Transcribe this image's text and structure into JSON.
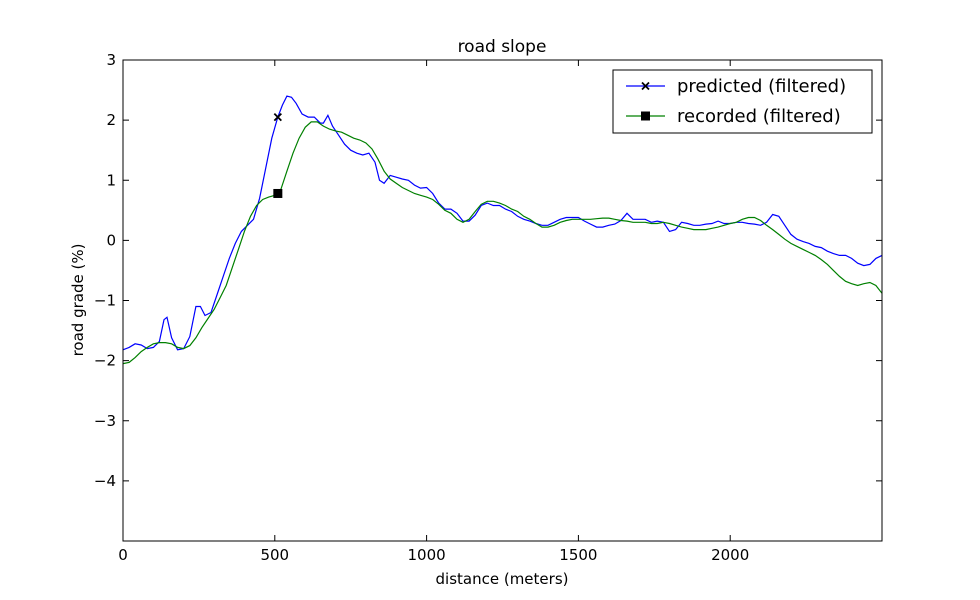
{
  "chart_data": {
    "type": "line",
    "title": "road slope",
    "xlabel": "distance (meters)",
    "ylabel": "road grade (%)",
    "xlim": [
      0,
      2500
    ],
    "ylim": [
      -5,
      3
    ],
    "xticks": [
      0,
      500,
      1000,
      1500,
      2000
    ],
    "yticks": [
      3,
      2,
      1,
      0,
      -1,
      -2,
      -3,
      -4
    ],
    "xtick_labels": [
      "0",
      "500",
      "1000",
      "1500",
      "2000"
    ],
    "ytick_labels": [
      "3",
      "2",
      "1",
      "0",
      "−1",
      "−2",
      "−3",
      "−4"
    ],
    "legend_position": "top-right",
    "grid": false,
    "series": [
      {
        "name": "predicted (filtered)",
        "color": "#0000ff",
        "marker": "x",
        "marker_point": [
          510,
          2.05
        ],
        "points": [
          [
            0,
            -1.82
          ],
          [
            20,
            -1.78
          ],
          [
            40,
            -1.72
          ],
          [
            60,
            -1.74
          ],
          [
            80,
            -1.8
          ],
          [
            100,
            -1.78
          ],
          [
            120,
            -1.68
          ],
          [
            135,
            -1.32
          ],
          [
            145,
            -1.28
          ],
          [
            160,
            -1.62
          ],
          [
            180,
            -1.82
          ],
          [
            200,
            -1.8
          ],
          [
            220,
            -1.6
          ],
          [
            240,
            -1.1
          ],
          [
            255,
            -1.1
          ],
          [
            270,
            -1.25
          ],
          [
            290,
            -1.2
          ],
          [
            310,
            -0.9
          ],
          [
            330,
            -0.6
          ],
          [
            350,
            -0.3
          ],
          [
            370,
            -0.05
          ],
          [
            390,
            0.15
          ],
          [
            410,
            0.25
          ],
          [
            430,
            0.35
          ],
          [
            450,
            0.7
          ],
          [
            470,
            1.2
          ],
          [
            490,
            1.7
          ],
          [
            510,
            2.05
          ],
          [
            525,
            2.25
          ],
          [
            540,
            2.4
          ],
          [
            555,
            2.38
          ],
          [
            570,
            2.28
          ],
          [
            590,
            2.1
          ],
          [
            610,
            2.05
          ],
          [
            630,
            2.05
          ],
          [
            650,
            1.95
          ],
          [
            660,
            1.95
          ],
          [
            675,
            2.08
          ],
          [
            690,
            1.9
          ],
          [
            710,
            1.75
          ],
          [
            730,
            1.6
          ],
          [
            750,
            1.5
          ],
          [
            770,
            1.45
          ],
          [
            790,
            1.42
          ],
          [
            810,
            1.45
          ],
          [
            830,
            1.3
          ],
          [
            845,
            1.0
          ],
          [
            860,
            0.95
          ],
          [
            880,
            1.08
          ],
          [
            900,
            1.05
          ],
          [
            920,
            1.02
          ],
          [
            940,
            1.0
          ],
          [
            960,
            0.92
          ],
          [
            980,
            0.87
          ],
          [
            1000,
            0.88
          ],
          [
            1020,
            0.78
          ],
          [
            1040,
            0.62
          ],
          [
            1060,
            0.52
          ],
          [
            1080,
            0.52
          ],
          [
            1100,
            0.45
          ],
          [
            1120,
            0.32
          ],
          [
            1140,
            0.32
          ],
          [
            1160,
            0.42
          ],
          [
            1180,
            0.58
          ],
          [
            1200,
            0.62
          ],
          [
            1220,
            0.58
          ],
          [
            1240,
            0.58
          ],
          [
            1260,
            0.52
          ],
          [
            1280,
            0.48
          ],
          [
            1300,
            0.4
          ],
          [
            1320,
            0.35
          ],
          [
            1340,
            0.32
          ],
          [
            1360,
            0.28
          ],
          [
            1380,
            0.25
          ],
          [
            1400,
            0.25
          ],
          [
            1420,
            0.3
          ],
          [
            1440,
            0.35
          ],
          [
            1460,
            0.38
          ],
          [
            1480,
            0.38
          ],
          [
            1500,
            0.38
          ],
          [
            1520,
            0.32
          ],
          [
            1540,
            0.27
          ],
          [
            1560,
            0.22
          ],
          [
            1580,
            0.22
          ],
          [
            1600,
            0.25
          ],
          [
            1620,
            0.27
          ],
          [
            1640,
            0.33
          ],
          [
            1660,
            0.45
          ],
          [
            1680,
            0.35
          ],
          [
            1700,
            0.35
          ],
          [
            1720,
            0.35
          ],
          [
            1740,
            0.3
          ],
          [
            1760,
            0.32
          ],
          [
            1780,
            0.3
          ],
          [
            1800,
            0.15
          ],
          [
            1820,
            0.18
          ],
          [
            1840,
            0.3
          ],
          [
            1860,
            0.28
          ],
          [
            1880,
            0.25
          ],
          [
            1900,
            0.25
          ],
          [
            1920,
            0.27
          ],
          [
            1940,
            0.28
          ],
          [
            1960,
            0.32
          ],
          [
            1980,
            0.28
          ],
          [
            2000,
            0.28
          ],
          [
            2020,
            0.3
          ],
          [
            2040,
            0.3
          ],
          [
            2060,
            0.28
          ],
          [
            2080,
            0.27
          ],
          [
            2100,
            0.25
          ],
          [
            2120,
            0.3
          ],
          [
            2140,
            0.43
          ],
          [
            2160,
            0.4
          ],
          [
            2180,
            0.25
          ],
          [
            2200,
            0.1
          ],
          [
            2220,
            0.02
          ],
          [
            2240,
            -0.02
          ],
          [
            2260,
            -0.05
          ],
          [
            2280,
            -0.1
          ],
          [
            2300,
            -0.12
          ],
          [
            2320,
            -0.18
          ],
          [
            2340,
            -0.22
          ],
          [
            2360,
            -0.25
          ],
          [
            2380,
            -0.25
          ],
          [
            2400,
            -0.3
          ],
          [
            2420,
            -0.38
          ],
          [
            2440,
            -0.42
          ],
          [
            2460,
            -0.4
          ],
          [
            2480,
            -0.3
          ],
          [
            2500,
            -0.25
          ]
        ]
      },
      {
        "name": "recorded (filtered)",
        "color": "#008000",
        "marker": "s",
        "marker_point": [
          510,
          0.78
        ],
        "points": [
          [
            0,
            -2.05
          ],
          [
            20,
            -2.03
          ],
          [
            40,
            -1.95
          ],
          [
            60,
            -1.85
          ],
          [
            80,
            -1.78
          ],
          [
            100,
            -1.72
          ],
          [
            120,
            -1.7
          ],
          [
            140,
            -1.7
          ],
          [
            160,
            -1.72
          ],
          [
            180,
            -1.78
          ],
          [
            200,
            -1.8
          ],
          [
            220,
            -1.75
          ],
          [
            240,
            -1.62
          ],
          [
            260,
            -1.45
          ],
          [
            280,
            -1.3
          ],
          [
            300,
            -1.15
          ],
          [
            320,
            -0.95
          ],
          [
            340,
            -0.75
          ],
          [
            360,
            -0.45
          ],
          [
            380,
            -0.15
          ],
          [
            400,
            0.15
          ],
          [
            420,
            0.4
          ],
          [
            440,
            0.58
          ],
          [
            460,
            0.68
          ],
          [
            480,
            0.72
          ],
          [
            500,
            0.75
          ],
          [
            520,
            0.85
          ],
          [
            540,
            1.15
          ],
          [
            560,
            1.45
          ],
          [
            580,
            1.7
          ],
          [
            600,
            1.88
          ],
          [
            620,
            1.97
          ],
          [
            640,
            1.97
          ],
          [
            660,
            1.9
          ],
          [
            680,
            1.85
          ],
          [
            700,
            1.82
          ],
          [
            720,
            1.8
          ],
          [
            740,
            1.75
          ],
          [
            760,
            1.7
          ],
          [
            780,
            1.67
          ],
          [
            800,
            1.62
          ],
          [
            820,
            1.52
          ],
          [
            840,
            1.35
          ],
          [
            860,
            1.15
          ],
          [
            880,
            1.02
          ],
          [
            900,
            0.95
          ],
          [
            920,
            0.88
          ],
          [
            940,
            0.83
          ],
          [
            960,
            0.78
          ],
          [
            980,
            0.75
          ],
          [
            1000,
            0.72
          ],
          [
            1020,
            0.68
          ],
          [
            1040,
            0.6
          ],
          [
            1060,
            0.5
          ],
          [
            1080,
            0.45
          ],
          [
            1100,
            0.35
          ],
          [
            1120,
            0.3
          ],
          [
            1140,
            0.35
          ],
          [
            1160,
            0.48
          ],
          [
            1180,
            0.6
          ],
          [
            1200,
            0.65
          ],
          [
            1220,
            0.65
          ],
          [
            1240,
            0.62
          ],
          [
            1260,
            0.58
          ],
          [
            1280,
            0.52
          ],
          [
            1300,
            0.48
          ],
          [
            1320,
            0.4
          ],
          [
            1340,
            0.35
          ],
          [
            1360,
            0.28
          ],
          [
            1380,
            0.22
          ],
          [
            1400,
            0.22
          ],
          [
            1420,
            0.25
          ],
          [
            1440,
            0.3
          ],
          [
            1460,
            0.33
          ],
          [
            1480,
            0.35
          ],
          [
            1500,
            0.35
          ],
          [
            1520,
            0.35
          ],
          [
            1540,
            0.35
          ],
          [
            1560,
            0.36
          ],
          [
            1580,
            0.37
          ],
          [
            1600,
            0.37
          ],
          [
            1620,
            0.35
          ],
          [
            1640,
            0.33
          ],
          [
            1660,
            0.32
          ],
          [
            1680,
            0.3
          ],
          [
            1700,
            0.3
          ],
          [
            1720,
            0.3
          ],
          [
            1740,
            0.28
          ],
          [
            1760,
            0.28
          ],
          [
            1780,
            0.3
          ],
          [
            1800,
            0.28
          ],
          [
            1820,
            0.25
          ],
          [
            1840,
            0.22
          ],
          [
            1860,
            0.2
          ],
          [
            1880,
            0.18
          ],
          [
            1900,
            0.18
          ],
          [
            1920,
            0.18
          ],
          [
            1940,
            0.2
          ],
          [
            1960,
            0.22
          ],
          [
            1980,
            0.25
          ],
          [
            2000,
            0.28
          ],
          [
            2020,
            0.3
          ],
          [
            2040,
            0.35
          ],
          [
            2060,
            0.38
          ],
          [
            2080,
            0.38
          ],
          [
            2100,
            0.33
          ],
          [
            2120,
            0.25
          ],
          [
            2140,
            0.18
          ],
          [
            2160,
            0.1
          ],
          [
            2180,
            0.02
          ],
          [
            2200,
            -0.05
          ],
          [
            2220,
            -0.1
          ],
          [
            2240,
            -0.15
          ],
          [
            2260,
            -0.2
          ],
          [
            2280,
            -0.25
          ],
          [
            2300,
            -0.32
          ],
          [
            2320,
            -0.4
          ],
          [
            2340,
            -0.5
          ],
          [
            2360,
            -0.6
          ],
          [
            2380,
            -0.68
          ],
          [
            2400,
            -0.72
          ],
          [
            2420,
            -0.75
          ],
          [
            2440,
            -0.72
          ],
          [
            2460,
            -0.7
          ],
          [
            2480,
            -0.75
          ],
          [
            2500,
            -0.88
          ]
        ]
      }
    ]
  }
}
